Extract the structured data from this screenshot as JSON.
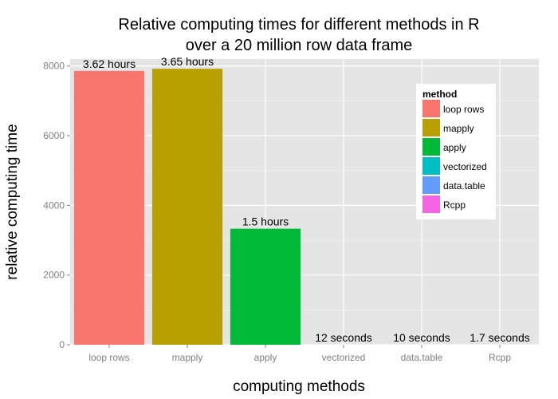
{
  "chart_data": {
    "type": "bar",
    "title_lines": [
      "Relative computing times for different methods in R",
      "over a 20 million row data frame"
    ],
    "xlabel": "computing methods",
    "ylabel": "relative computing time",
    "ylim": [
      0,
      8200
    ],
    "y_ticks": [
      0,
      2000,
      4000,
      6000,
      8000
    ],
    "categories": [
      "loop rows",
      "mapply",
      "apply",
      "vectorized",
      "data.table",
      "Rcpp"
    ],
    "values": [
      7860,
      7920,
      3330,
      1,
      1,
      1
    ],
    "bar_labels": [
      "3.62 hours",
      "3.65 hours",
      "1.5 hours",
      "12 seconds",
      "10 seconds",
      "1.7 seconds"
    ],
    "colors": [
      "#F8766D",
      "#B79F00",
      "#00BA38",
      "#00BFC4",
      "#619CFF",
      "#F564E3"
    ],
    "legend": {
      "title": "method",
      "placement": "top-right",
      "entries": [
        "loop rows",
        "mapply",
        "apply",
        "vectorized",
        "data.table",
        "Rcpp"
      ]
    },
    "panel_background": "#E5E5E5",
    "grid": true
  }
}
